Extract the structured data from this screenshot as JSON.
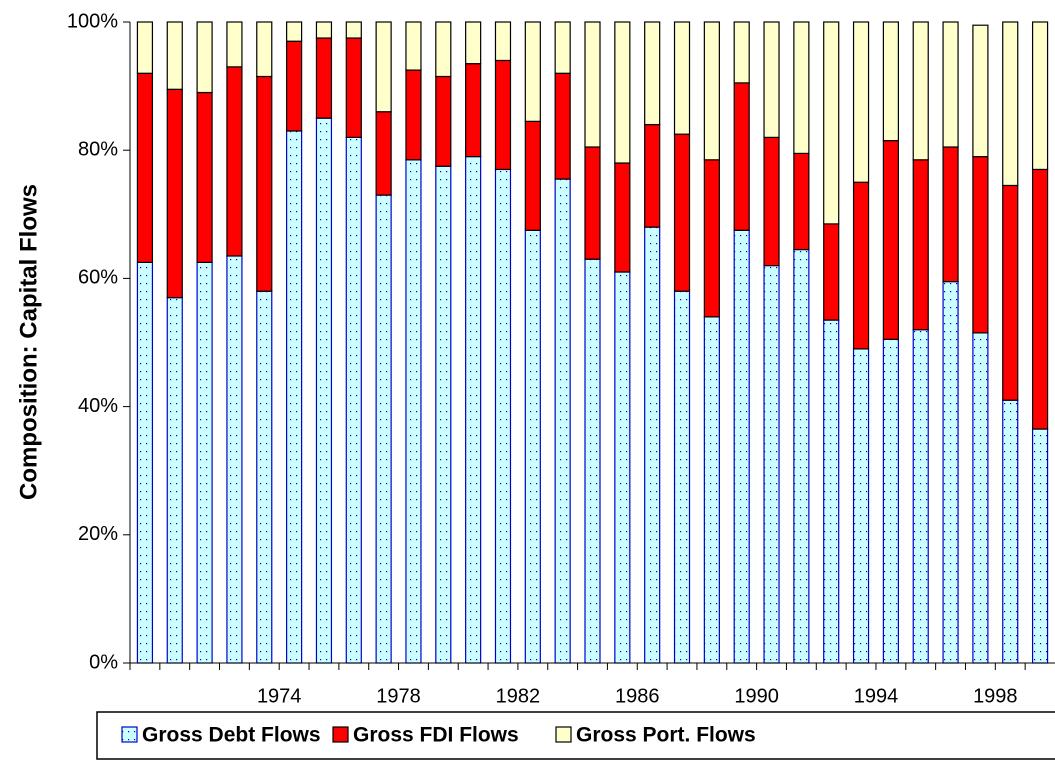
{
  "chart_data": {
    "type": "stacked_bar",
    "y_label": "Composition: Capital Flows",
    "categories": [
      null,
      null,
      null,
      null,
      "1974",
      null,
      null,
      null,
      "1978",
      null,
      null,
      null,
      "1982",
      null,
      null,
      null,
      "1986",
      null,
      null,
      null,
      "1990",
      null,
      null,
      null,
      "1994",
      null,
      null,
      null,
      "1998",
      null,
      null
    ],
    "series": [
      {
        "name": "Gross Debt Flows",
        "color": "#ccffff",
        "values": [
          62.5,
          57,
          62.5,
          63.5,
          58,
          83,
          85,
          82,
          73,
          78.5,
          77.5,
          79,
          77,
          67.5,
          75.5,
          63,
          61,
          68,
          58,
          54,
          67.5,
          62,
          64.5,
          53.5,
          49,
          50.5,
          52,
          59.5,
          51.5,
          41,
          36.5
        ]
      },
      {
        "name": "Gross FDI Flows",
        "color": "#ff0000",
        "values": [
          29.5,
          32.5,
          26.5,
          29.5,
          33.5,
          14,
          12.5,
          15.5,
          13,
          14,
          14,
          14.5,
          17,
          17,
          16.5,
          17.5,
          17,
          16,
          24.5,
          24.5,
          23,
          20,
          15,
          15,
          26,
          31,
          26.5,
          21,
          27.5,
          33.5,
          40.5
        ]
      },
      {
        "name": "Gross Port. Flows",
        "color": "#ffffcc",
        "values": [
          8,
          10.5,
          11,
          7,
          8.5,
          3,
          2.5,
          2.5,
          14,
          7.5,
          8.5,
          6.5,
          6,
          15.5,
          8,
          19.5,
          22,
          16,
          17.5,
          21.5,
          9.5,
          18,
          20.5,
          31.5,
          25,
          18.5,
          21.5,
          19.5,
          20.5,
          25.5,
          23
        ]
      }
    ],
    "ylim": [
      0,
      100
    ],
    "yticks": [
      {
        "value": 0,
        "label": "0%"
      },
      {
        "value": 20,
        "label": "20%"
      },
      {
        "value": 40,
        "label": "40%"
      },
      {
        "value": 60,
        "label": "60%"
      },
      {
        "value": 80,
        "label": "80%"
      },
      {
        "value": 100,
        "label": "100%"
      }
    ],
    "legend": "bottom"
  }
}
